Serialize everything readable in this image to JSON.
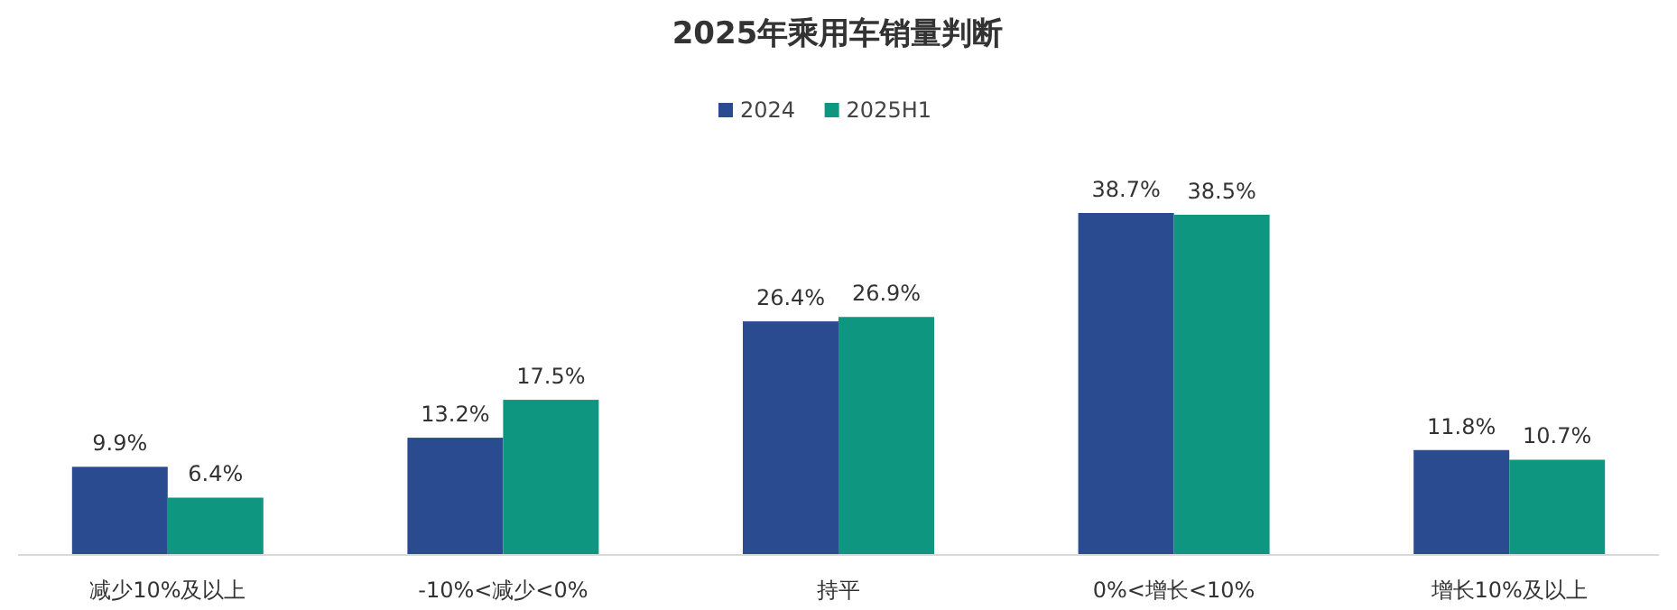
{
  "chart_data": {
    "type": "bar",
    "title": "2025年乘用车销量判断",
    "categories": [
      "减少10%及以上",
      "-10%<减少<0%",
      "持平",
      "0%<增长<10%",
      "增长10%及以上"
    ],
    "series": [
      {
        "name": "2024",
        "color": "#2a4b8f",
        "values": [
          9.9,
          13.2,
          26.4,
          38.7,
          11.8
        ],
        "value_labels": [
          "9.9%",
          "13.2%",
          "26.4%",
          "38.7%",
          "11.8%"
        ]
      },
      {
        "name": "2025H1",
        "color": "#0f9680",
        "values": [
          6.4,
          17.5,
          26.9,
          38.5,
          10.7
        ],
        "value_labels": [
          "6.4%",
          "17.5%",
          "26.9%",
          "38.5%",
          "10.7%"
        ]
      }
    ],
    "legend": "top"
  }
}
